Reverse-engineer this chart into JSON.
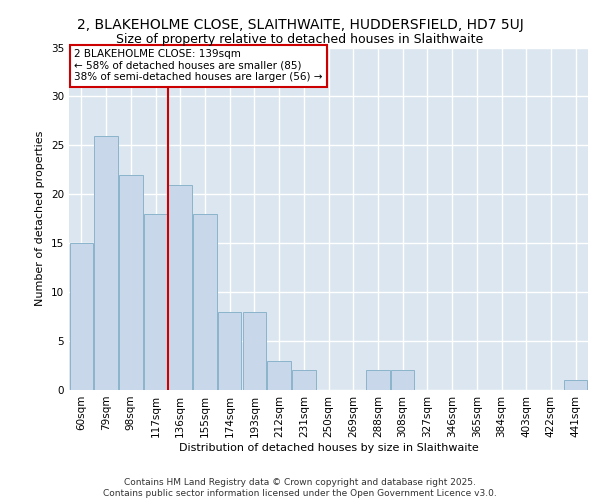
{
  "title1": "2, BLAKEHOLME CLOSE, SLAITHWAITE, HUDDERSFIELD, HD7 5UJ",
  "title2": "Size of property relative to detached houses in Slaithwaite",
  "xlabel": "Distribution of detached houses by size in Slaithwaite",
  "ylabel": "Number of detached properties",
  "categories": [
    "60sqm",
    "79sqm",
    "98sqm",
    "117sqm",
    "136sqm",
    "155sqm",
    "174sqm",
    "193sqm",
    "212sqm",
    "231sqm",
    "250sqm",
    "269sqm",
    "288sqm",
    "308sqm",
    "327sqm",
    "346sqm",
    "365sqm",
    "384sqm",
    "403sqm",
    "422sqm",
    "441sqm"
  ],
  "values": [
    15,
    26,
    22,
    18,
    21,
    18,
    8,
    8,
    3,
    2,
    0,
    0,
    2,
    2,
    0,
    0,
    0,
    0,
    0,
    0,
    1
  ],
  "bar_color": "#c8d8ea",
  "bar_edge_color": "#8ab4cc",
  "vline_index": 3.5,
  "vline_color": "#cc0000",
  "annotation_text": "2 BLAKEHOLME CLOSE: 139sqm\n← 58% of detached houses are smaller (85)\n38% of semi-detached houses are larger (56) →",
  "annotation_box_color": "#ffffff",
  "annotation_box_edge_color": "#cc0000",
  "ylim": [
    0,
    35
  ],
  "yticks": [
    0,
    5,
    10,
    15,
    20,
    25,
    30,
    35
  ],
  "background_color": "#dce6f0",
  "grid_color": "#ffffff",
  "footer": "Contains HM Land Registry data © Crown copyright and database right 2025.\nContains public sector information licensed under the Open Government Licence v3.0.",
  "title1_fontsize": 10,
  "title2_fontsize": 9,
  "axis_label_fontsize": 8,
  "tick_fontsize": 7.5,
  "footer_fontsize": 6.5
}
